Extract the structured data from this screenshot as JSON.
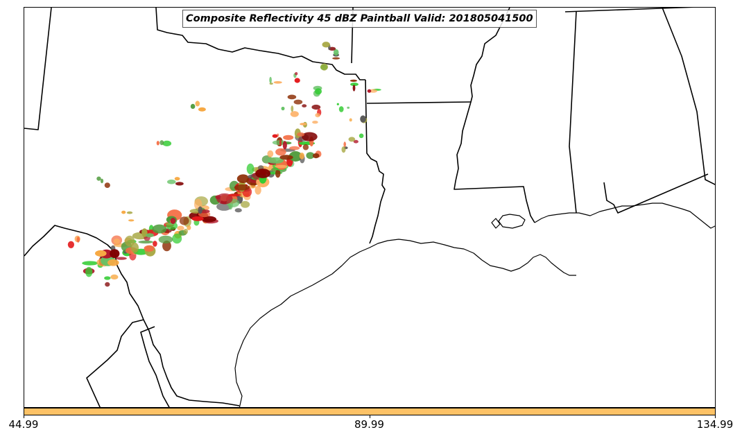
{
  "title": "Composite Reflectivity 45 dBZ Paintball Valid: 201805041500",
  "colorbar": {
    "color": "#fdc266",
    "ticks": [
      {
        "label": "44.99",
        "value": 44.99
      },
      {
        "label": "89.99",
        "value": 89.99
      },
      {
        "label": "134.99",
        "value": 134.99
      }
    ],
    "range": [
      44.99,
      134.99
    ]
  },
  "layers": {
    "state_borders_color": "#000000",
    "coastline_color": "#000000"
  },
  "paintball_colors": [
    "#fdae61",
    "#f7a944",
    "#e31a1c",
    "#b2182b",
    "#7f0000",
    "#33cc33",
    "#4d9a3a",
    "#a6a640",
    "#5a5a5a",
    "#8c2d04",
    "#f46d43",
    "#66c266"
  ]
}
